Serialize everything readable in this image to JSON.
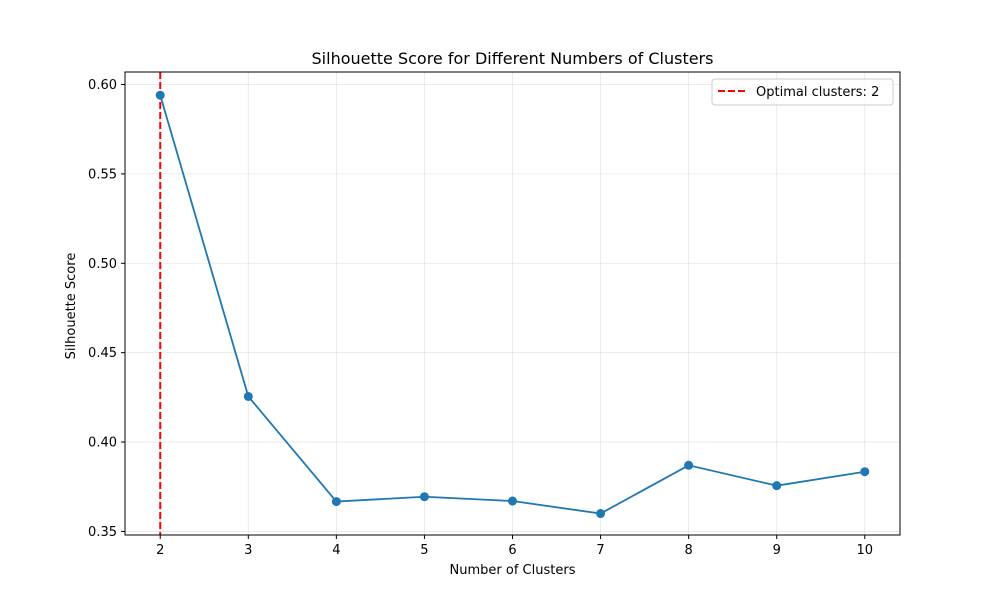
{
  "chart_data": {
    "type": "line",
    "title": "Silhouette Score for Different Numbers of Clusters",
    "xlabel": "Number of Clusters",
    "ylabel": "Silhouette Score",
    "x": [
      2,
      3,
      4,
      5,
      6,
      7,
      8,
      9,
      10
    ],
    "series": [
      {
        "values": [
          0.594,
          0.4255,
          0.3667,
          0.3694,
          0.367,
          0.36,
          0.387,
          0.3756,
          0.3834
        ],
        "color": "#1f77b4",
        "marker": "circle"
      }
    ],
    "xlim": [
      1.6,
      10.4
    ],
    "ylim": [
      0.348,
      0.607
    ],
    "xticks": [
      2,
      3,
      4,
      5,
      6,
      7,
      8,
      9,
      10
    ],
    "yticks": [
      0.35,
      0.4,
      0.45,
      0.5,
      0.55,
      0.6
    ],
    "ytick_labels": [
      "0.35",
      "0.40",
      "0.45",
      "0.50",
      "0.55",
      "0.60"
    ],
    "reference_line": {
      "orientation": "vertical",
      "x": 2,
      "label": "Optimal clusters: 2",
      "color": "#ff0000",
      "style": "dashed"
    },
    "grid": true,
    "legend_position": "top-right"
  }
}
